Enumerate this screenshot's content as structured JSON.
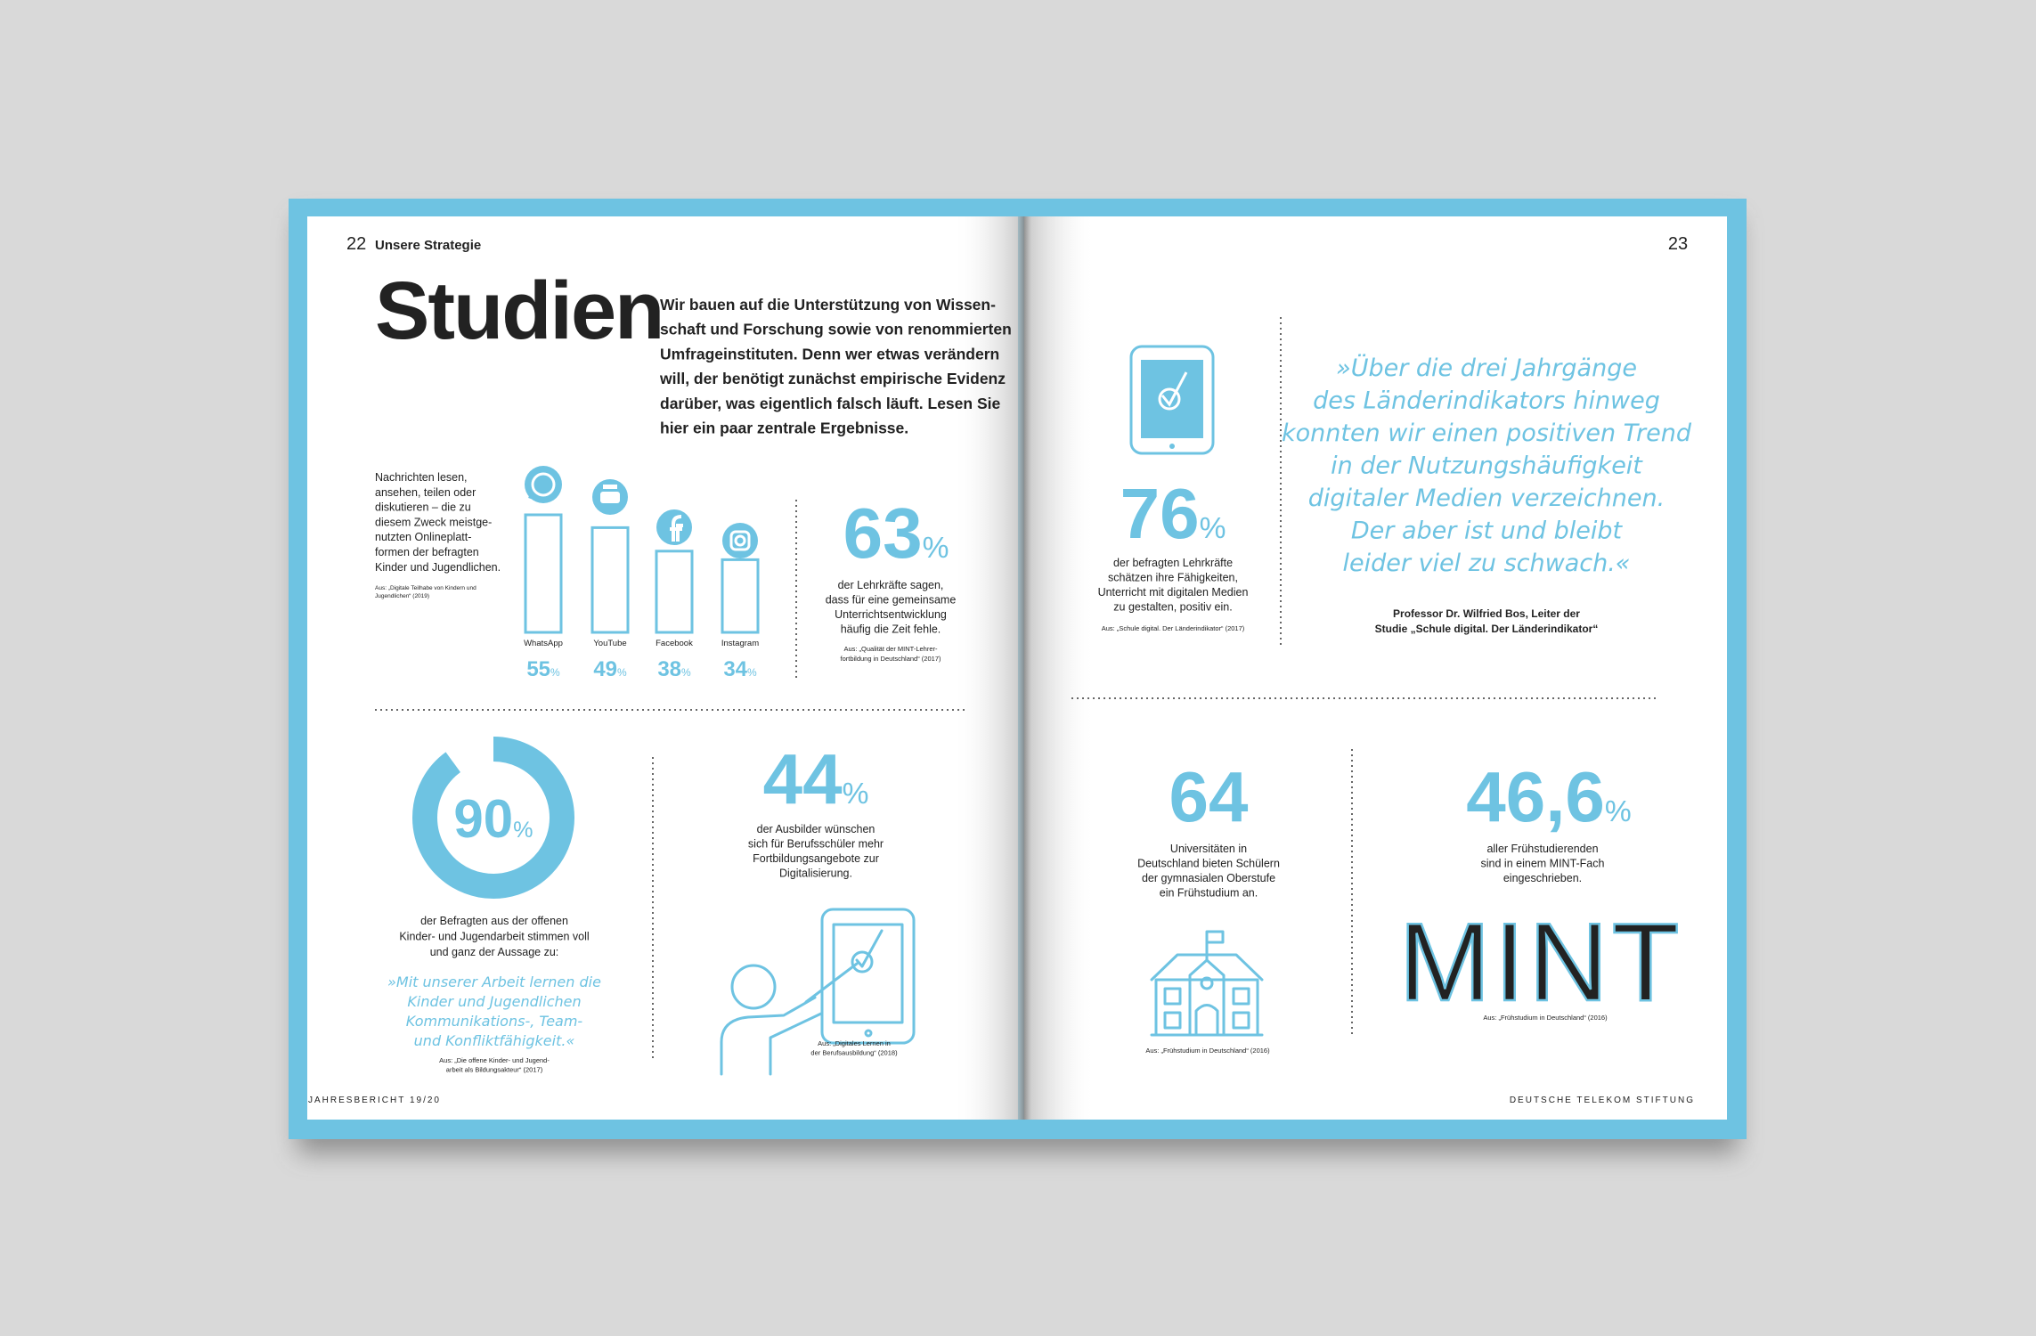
{
  "left_page": {
    "page_number": "22",
    "section": "Unsere Strategie",
    "title": "Studien",
    "intro": [
      "Wir bauen auf die Unterstützung von Wissen-",
      "schaft und Forschung sowie von renommierten",
      "Umfrageinstituten. Denn wer etwas verändern",
      "will, der benötigt zunächst empirische Evidenz",
      "darüber, was eigentlich falsch läuft. Lesen Sie",
      "hier ein paar zentrale Ergebnisse."
    ],
    "platforms": {
      "description": [
        "Nachrichten lesen,",
        "ansehen, teilen oder",
        "diskutieren – die zu",
        "diesem Zweck meistge-",
        "nutzten Onlineplatt-",
        "formen der befragten",
        "Kinder und Jugendlichen."
      ],
      "source": [
        "Aus: „Digitale Teilhabe von Kindern und",
        "Jugendlichen“ (2019)"
      ],
      "unit": "%",
      "items": [
        {
          "name": "WhatsApp",
          "value": 55
        },
        {
          "name": "YouTube",
          "value": 49
        },
        {
          "name": "Facebook",
          "value": 38
        },
        {
          "name": "Instagram",
          "value": 34
        }
      ]
    },
    "stat_teachers": {
      "number": 63,
      "unit": "%",
      "text": [
        "der Lehrkräfte sagen,",
        "dass für eine gemeinsame",
        "Unterrichtsentwicklung",
        "häufig die Zeit fehle."
      ],
      "source": [
        "Aus: „Qualität der MINT-Lehrer-",
        "fortbildung in Deutschland“ (2017)"
      ]
    },
    "stat_youth_work": {
      "number": 90,
      "unit": "%",
      "text": [
        "der Befragten aus der offenen",
        "Kinder- und Jugendarbeit stimmen voll",
        "und ganz der Aussage zu:"
      ],
      "quote": [
        "»Mit unserer Arbeit lernen die",
        "Kinder und Jugendlichen",
        "Kommunikations-, Team-",
        "und Konfliktfähigkeit.«"
      ],
      "source": [
        "Aus: „Die offene Kinder- und Jugend-",
        "arbeit als Bildungsakteur“ (2017)"
      ]
    },
    "stat_trainers": {
      "number": 44,
      "unit": "%",
      "text": [
        "der Ausbilder wünschen",
        "sich für Berufsschüler mehr",
        "Fortbildungsangebote zur",
        "Digitalisierung."
      ],
      "source": [
        "Aus: „Digitales Lernen in",
        "der Berufsausbildung“ (2018)"
      ]
    },
    "footer": "JAHRESBERICHT 19/20"
  },
  "right_page": {
    "page_number": "23",
    "stat_teachers": {
      "number": 76,
      "unit": "%",
      "text": [
        "der befragten Lehrkräfte",
        "schätzen ihre Fähigkeiten,",
        "Unterricht mit digitalen Medien",
        "zu gestalten, positiv ein."
      ],
      "source": [
        "Aus: „Schule digital. Der Länderindikator“ (2017)"
      ]
    },
    "quote": {
      "lines": [
        "»Über die drei Jahrgänge",
        "des Länderindikators hinweg",
        "konnten wir einen positiven Trend",
        "in der Nutzungshäufigkeit",
        "digitaler Medien verzeichnen.",
        "Der aber ist und bleibt",
        "leider viel zu schwach.«"
      ],
      "attribution": [
        "Professor Dr. Wilfried Bos, Leiter der",
        "Studie „Schule digital. Der Länderindikator“"
      ]
    },
    "stat_universities": {
      "number": 64,
      "text": [
        "Universitäten in",
        "Deutschland bieten Schülern",
        "der gymnasialen Oberstufe",
        "ein Frühstudium an."
      ],
      "source": [
        "Aus: „Frühstudium in Deutschland“ (2016)"
      ]
    },
    "stat_mint": {
      "number": "46,6",
      "unit": "%",
      "text": [
        "aller Frühstudierenden",
        "sind in einem MINT-Fach",
        "eingeschrieben."
      ],
      "logo": "MINT",
      "source": [
        "Aus: „Frühstudium in Deutschland“ (2016)"
      ]
    },
    "footer": "DEUTSCHE TELEKOM STIFTUNG"
  }
}
